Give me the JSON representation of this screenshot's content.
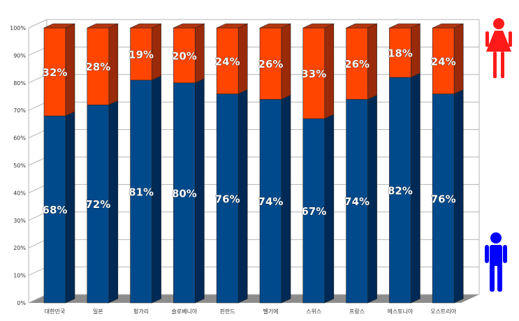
{
  "chart_data": {
    "type": "bar",
    "stacked": true,
    "three_d": true,
    "categories": [
      "대한민국",
      "일본",
      "헝가리",
      "슬로베니아",
      "핀란드",
      "벨기에",
      "스위스",
      "프랑스",
      "에스토니아",
      "오스트리아"
    ],
    "series": [
      {
        "name": "male",
        "color": "#004a8c",
        "values": [
          68,
          72,
          81,
          80,
          76,
          74,
          67,
          74,
          82,
          76
        ],
        "labels": [
          "68%",
          "72%",
          "81%",
          "80%",
          "76%",
          "74%",
          "67%",
          "74%",
          "82%",
          "76%"
        ]
      },
      {
        "name": "female",
        "color": "#ff4500",
        "values": [
          32,
          28,
          19,
          20,
          24,
          26,
          33,
          26,
          18,
          24
        ],
        "labels": [
          "32%",
          "28%",
          "19%",
          "20%",
          "24%",
          "26%",
          "33%",
          "26%",
          "18%",
          "24%"
        ]
      }
    ],
    "ylim": [
      0,
      100
    ],
    "yticks": [
      "0%",
      "10%",
      "20%",
      "30%",
      "40%",
      "50%",
      "60%",
      "70%",
      "80%",
      "90%",
      "100%"
    ],
    "grid": true,
    "legend_icons": {
      "female": "female-icon",
      "male": "male-icon",
      "female_color": "#ff1a1a",
      "male_color": "#0000ff"
    }
  }
}
